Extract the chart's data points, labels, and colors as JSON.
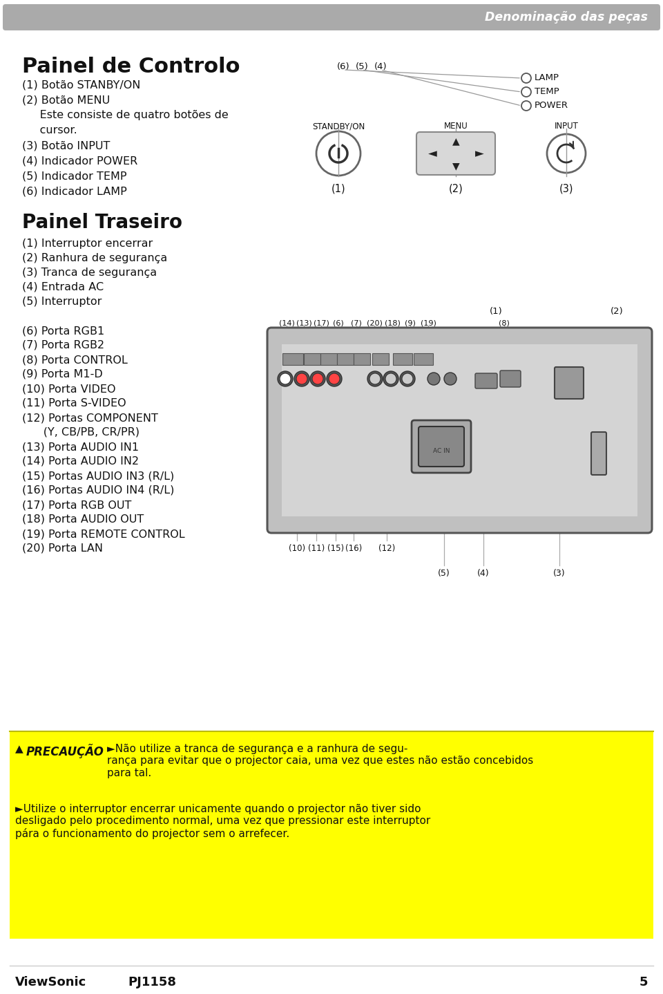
{
  "bg_color": "#ffffff",
  "header_color": "#aaaaaa",
  "header_text": "Denominação das peças",
  "header_text_color": "#ffffff",
  "section1_title": "Painel de Controlo",
  "section1_lines": [
    "(1) Botão STANBY/ON",
    "(2) Botão MENU",
    "     Este consiste de quatro botões de",
    "     cursor.",
    "(3) Botão INPUT",
    "(4) Indicador POWER",
    "(5) Indicador TEMP",
    "(6) Indicador LAMP"
  ],
  "section2_title": "Painel Traseiro",
  "section2_lines": [
    "(1) Interruptor encerrar",
    "(2) Ranhura de segurança",
    "(3) Tranca de segurança",
    "(4) Entrada AC",
    "(5) Interruptor",
    "",
    "(6) Porta RGB1",
    "(7) Porta RGB2",
    "(8) Porta CONTROL",
    "(9) Porta M1-D",
    "(10) Porta VIDEO",
    "(11) Porta S-VIDEO",
    "(12) Portas COMPONENT",
    "      (Y, CB/PB, CR/PR)",
    "(13) Porta AUDIO IN1",
    "(14) Porta AUDIO IN2",
    "(15) Portas AUDIO IN3 (R/L)",
    "(16) Portas AUDIO IN4 (R/L)",
    "(17) Porta RGB OUT",
    "(18) Porta AUDIO OUT",
    "(19) Porta REMOTE CONTROL",
    "(20) Porta LAN"
  ],
  "warning_bg": "#ffff00",
  "warning_title": "PRECAUÇÃO",
  "warning_p1": "Não utilize a tranca de segurança e a ranhura de segu-\nrança para evitar que o projector caia, uma vez que estes não estão concebidos\npara tal.",
  "warning_p2": "Utilize o interruptor encerrar unicamente quando o projector não tiver sido\ndesligado pelo procedimento normal, uma vez que pressionar este interruptor\npára o funcionamento do projector sem o arrefecer.",
  "footer_brand": "ViewSonic",
  "footer_model": "PJ1158",
  "footer_page": "5",
  "text_color": "#111111"
}
